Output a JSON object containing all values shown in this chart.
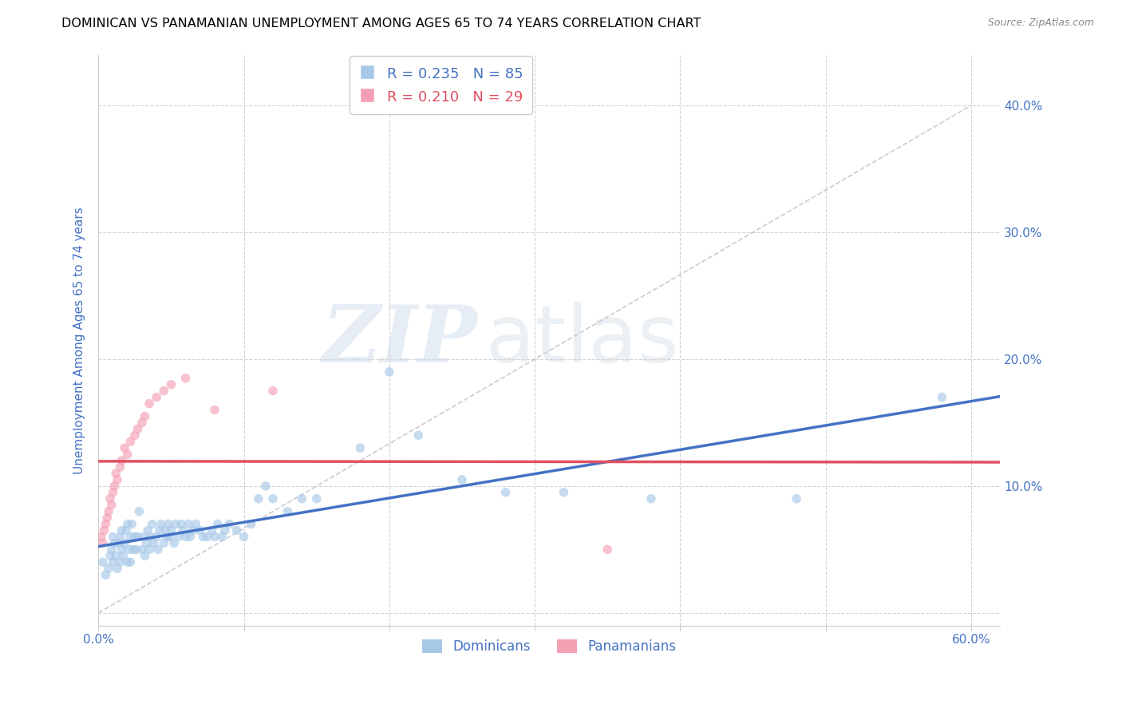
{
  "title": "DOMINICAN VS PANAMANIAN UNEMPLOYMENT AMONG AGES 65 TO 74 YEARS CORRELATION CHART",
  "source": "Source: ZipAtlas.com",
  "ylabel": "Unemployment Among Ages 65 to 74 years",
  "xlim": [
    0.0,
    0.62
  ],
  "ylim": [
    -0.01,
    0.44
  ],
  "xticks": [
    0.0,
    0.1,
    0.2,
    0.3,
    0.4,
    0.5,
    0.6
  ],
  "yticks": [
    0.0,
    0.1,
    0.2,
    0.3,
    0.4
  ],
  "xtick_labels": [
    "0.0%",
    "",
    "",
    "",
    "",
    "",
    "60.0%"
  ],
  "ytick_labels_right": [
    "",
    "10.0%",
    "20.0%",
    "30.0%",
    "40.0%"
  ],
  "dominican_color": "#a8c8e8",
  "panamanian_color": "#f4a0b4",
  "trendline_dominican_color": "#4472c4",
  "trendline_panamanian_color": "#e05060",
  "diagonal_line_color": "#c0c0c0",
  "legend_line1": "R = 0.235   N = 85",
  "legend_line2": "R = 0.210   N = 29",
  "watermark_zip": "ZIP",
  "watermark_atlas": "atlas",
  "dominican_x": [
    0.003,
    0.005,
    0.007,
    0.008,
    0.009,
    0.01,
    0.01,
    0.011,
    0.012,
    0.013,
    0.014,
    0.015,
    0.015,
    0.016,
    0.016,
    0.017,
    0.018,
    0.019,
    0.02,
    0.02,
    0.021,
    0.022,
    0.022,
    0.023,
    0.024,
    0.025,
    0.026,
    0.027,
    0.028,
    0.03,
    0.031,
    0.032,
    0.033,
    0.034,
    0.035,
    0.036,
    0.037,
    0.038,
    0.04,
    0.041,
    0.042,
    0.043,
    0.045,
    0.046,
    0.047,
    0.048,
    0.049,
    0.05,
    0.052,
    0.053,
    0.055,
    0.057,
    0.058,
    0.06,
    0.062,
    0.063,
    0.065,
    0.067,
    0.07,
    0.072,
    0.075,
    0.078,
    0.08,
    0.082,
    0.085,
    0.087,
    0.09,
    0.095,
    0.1,
    0.105,
    0.11,
    0.115,
    0.12,
    0.13,
    0.14,
    0.15,
    0.18,
    0.2,
    0.22,
    0.25,
    0.28,
    0.32,
    0.38,
    0.48,
    0.58
  ],
  "dominican_y": [
    0.04,
    0.03,
    0.035,
    0.045,
    0.05,
    0.04,
    0.06,
    0.055,
    0.045,
    0.035,
    0.055,
    0.04,
    0.06,
    0.05,
    0.065,
    0.045,
    0.055,
    0.065,
    0.04,
    0.07,
    0.05,
    0.04,
    0.06,
    0.07,
    0.05,
    0.06,
    0.05,
    0.06,
    0.08,
    0.05,
    0.06,
    0.045,
    0.055,
    0.065,
    0.05,
    0.06,
    0.07,
    0.055,
    0.06,
    0.05,
    0.065,
    0.07,
    0.055,
    0.065,
    0.06,
    0.07,
    0.06,
    0.065,
    0.055,
    0.07,
    0.06,
    0.07,
    0.065,
    0.06,
    0.07,
    0.06,
    0.065,
    0.07,
    0.065,
    0.06,
    0.06,
    0.065,
    0.06,
    0.07,
    0.06,
    0.065,
    0.07,
    0.065,
    0.06,
    0.07,
    0.09,
    0.1,
    0.09,
    0.08,
    0.09,
    0.09,
    0.13,
    0.19,
    0.14,
    0.105,
    0.095,
    0.095,
    0.09,
    0.09,
    0.17
  ],
  "panamanian_x": [
    0.002,
    0.003,
    0.004,
    0.005,
    0.006,
    0.007,
    0.008,
    0.009,
    0.01,
    0.011,
    0.012,
    0.013,
    0.015,
    0.016,
    0.018,
    0.02,
    0.022,
    0.025,
    0.027,
    0.03,
    0.032,
    0.035,
    0.04,
    0.045,
    0.05,
    0.06,
    0.08,
    0.12,
    0.35
  ],
  "panamanian_y": [
    0.06,
    0.055,
    0.065,
    0.07,
    0.075,
    0.08,
    0.09,
    0.085,
    0.095,
    0.1,
    0.11,
    0.105,
    0.115,
    0.12,
    0.13,
    0.125,
    0.135,
    0.14,
    0.145,
    0.15,
    0.155,
    0.165,
    0.17,
    0.175,
    0.18,
    0.185,
    0.16,
    0.175,
    0.05
  ],
  "marker_size": 70,
  "marker_alpha": 0.65,
  "background_color": "#ffffff",
  "grid_color": "#d0d0d0",
  "axis_label_color": "#4472c4",
  "title_color": "#000000",
  "title_fontsize": 11.5,
  "ylabel_fontsize": 11,
  "tick_label_color": "#4472c4",
  "tick_label_fontsize": 11,
  "source_color": "#888888"
}
